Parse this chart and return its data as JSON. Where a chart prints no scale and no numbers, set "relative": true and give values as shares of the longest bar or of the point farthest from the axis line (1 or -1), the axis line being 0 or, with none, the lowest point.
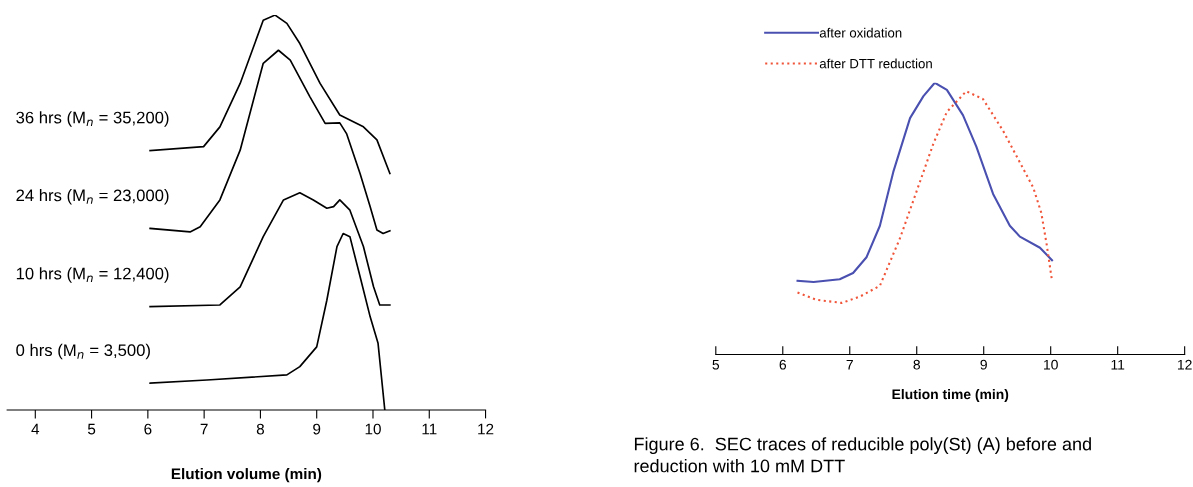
{
  "chart_data": [
    {
      "type": "line",
      "relative": true,
      "xlabel": "Elution volume (min)",
      "xlim": [
        3.5,
        12
      ],
      "xticks": [
        4,
        5,
        6,
        7,
        8,
        9,
        10,
        11,
        12
      ],
      "grid": false,
      "legend": false,
      "marker": "none",
      "line_style": "solid",
      "tick_labels": "x",
      "series": [
        {
          "name": "36 hrs (M$_{n}$ = 35,200)",
          "color": "#000000",
          "x": [
            6.04,
            6.99,
            7.28,
            7.64,
            8.05,
            8.26,
            8.47,
            8.7,
            9.06,
            9.41,
            9.83,
            10.07,
            10.3
          ],
          "values": [
            0.657,
            0.667,
            0.717,
            0.827,
            0.987,
            1.0,
            0.979,
            0.928,
            0.827,
            0.747,
            0.717,
            0.684,
            0.599
          ]
        },
        {
          "name": "24 hrs (M$_{n}$ = 23,000)",
          "color": "#000000",
          "x": [
            6.04,
            6.75,
            6.93,
            7.28,
            7.64,
            8.05,
            8.32,
            8.53,
            8.88,
            9.15,
            9.41,
            9.53,
            9.77,
            9.95,
            10.07,
            10.18,
            10.3
          ],
          "values": [
            0.46,
            0.451,
            0.464,
            0.532,
            0.658,
            0.878,
            0.911,
            0.886,
            0.793,
            0.726,
            0.727,
            0.7,
            0.599,
            0.515,
            0.456,
            0.447,
            0.454
          ]
        },
        {
          "name": "10 hrs (M$_{n}$ = 12,400)",
          "color": "#000000",
          "x": [
            6.04,
            7.28,
            7.64,
            8.05,
            8.41,
            8.7,
            8.94,
            9.18,
            9.3,
            9.41,
            9.59,
            9.83,
            10.01,
            10.12,
            10.3
          ],
          "values": [
            0.262,
            0.266,
            0.312,
            0.439,
            0.532,
            0.55,
            0.532,
            0.511,
            0.515,
            0.532,
            0.506,
            0.414,
            0.312,
            0.266,
            0.266
          ]
        },
        {
          "name": "0 hrs (M$_{n}$ = 3,500)",
          "color": "#000000",
          "x": [
            6.04,
            7.05,
            8.47,
            8.7,
            9.0,
            9.18,
            9.36,
            9.47,
            9.59,
            9.77,
            9.95,
            10.09,
            10.21
          ],
          "values": [
            0.068,
            0.076,
            0.089,
            0.11,
            0.16,
            0.278,
            0.414,
            0.447,
            0.439,
            0.338,
            0.236,
            0.169,
            0.0
          ]
        }
      ]
    },
    {
      "type": "line",
      "relative": true,
      "xlabel": "Elution time (min)",
      "xlim": [
        5,
        12
      ],
      "xticks": [
        5,
        6,
        7,
        8,
        9,
        10,
        11,
        12
      ],
      "grid": false,
      "legend": "top left",
      "marker": "none",
      "tick_labels": "x",
      "annotations": [
        "Figure 6.  SEC traces of reducible poly(St) (A) before and",
        "reduction with 10 mM DTT"
      ],
      "series": [
        {
          "name": "after oxidation",
          "color": "#4a50b0",
          "line_style": "solid",
          "x": [
            6.22,
            6.46,
            6.85,
            7.05,
            7.25,
            7.45,
            7.65,
            7.9,
            8.1,
            8.27,
            8.45,
            8.69,
            8.89,
            9.14,
            9.39,
            9.54,
            9.84,
            10.02
          ],
          "values": [
            0.271,
            0.267,
            0.277,
            0.3,
            0.358,
            0.474,
            0.672,
            0.87,
            0.951,
            1.0,
            0.974,
            0.881,
            0.765,
            0.591,
            0.474,
            0.434,
            0.393,
            0.347
          ]
        },
        {
          "name": "after DTT reduction",
          "color": "#f0553a",
          "line_style": "dotted",
          "x": [
            6.22,
            6.51,
            6.88,
            7.15,
            7.45,
            7.75,
            8.0,
            8.25,
            8.45,
            8.74,
            8.99,
            9.29,
            9.54,
            9.74,
            9.86,
            9.94,
            10.02
          ],
          "values": [
            0.228,
            0.201,
            0.19,
            0.213,
            0.253,
            0.428,
            0.602,
            0.777,
            0.893,
            0.969,
            0.94,
            0.823,
            0.707,
            0.614,
            0.521,
            0.405,
            0.271
          ]
        }
      ]
    }
  ]
}
